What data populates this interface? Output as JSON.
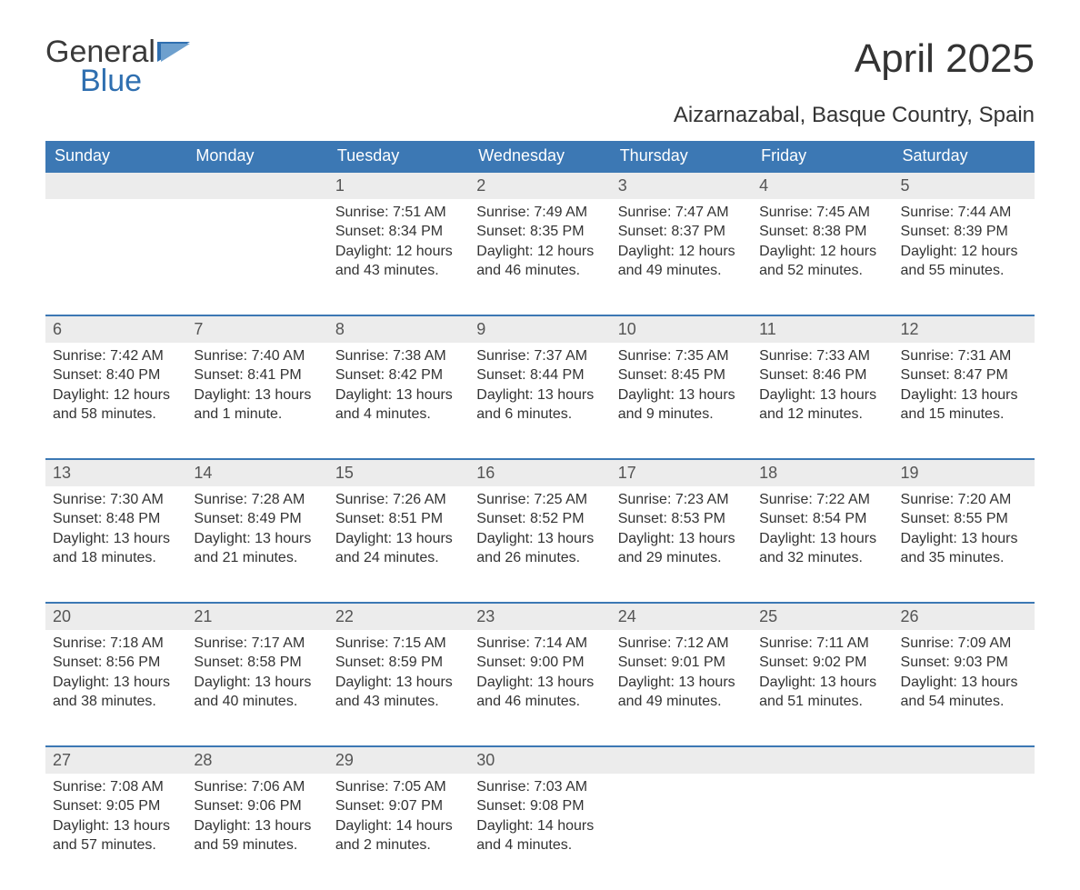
{
  "brand": {
    "name_top": "General",
    "name_bottom": "Blue",
    "flag_color": "#2f6fb0"
  },
  "header": {
    "title": "April 2025",
    "subtitle": "Aizarnazabal, Basque Country, Spain"
  },
  "colors": {
    "header_bg": "#3c78b4",
    "header_text": "#ffffff",
    "daynum_bg": "#ececec",
    "daynum_border": "#3c78b4",
    "body_text": "#333333",
    "brand_blue": "#2f6fb0"
  },
  "day_labels": [
    "Sunday",
    "Monday",
    "Tuesday",
    "Wednesday",
    "Thursday",
    "Friday",
    "Saturday"
  ],
  "weeks": [
    [
      null,
      null,
      {
        "n": "1",
        "sr": "Sunrise: 7:51 AM",
        "ss": "Sunset: 8:34 PM",
        "d1": "Daylight: 12 hours",
        "d2": "and 43 minutes."
      },
      {
        "n": "2",
        "sr": "Sunrise: 7:49 AM",
        "ss": "Sunset: 8:35 PM",
        "d1": "Daylight: 12 hours",
        "d2": "and 46 minutes."
      },
      {
        "n": "3",
        "sr": "Sunrise: 7:47 AM",
        "ss": "Sunset: 8:37 PM",
        "d1": "Daylight: 12 hours",
        "d2": "and 49 minutes."
      },
      {
        "n": "4",
        "sr": "Sunrise: 7:45 AM",
        "ss": "Sunset: 8:38 PM",
        "d1": "Daylight: 12 hours",
        "d2": "and 52 minutes."
      },
      {
        "n": "5",
        "sr": "Sunrise: 7:44 AM",
        "ss": "Sunset: 8:39 PM",
        "d1": "Daylight: 12 hours",
        "d2": "and 55 minutes."
      }
    ],
    [
      {
        "n": "6",
        "sr": "Sunrise: 7:42 AM",
        "ss": "Sunset: 8:40 PM",
        "d1": "Daylight: 12 hours",
        "d2": "and 58 minutes."
      },
      {
        "n": "7",
        "sr": "Sunrise: 7:40 AM",
        "ss": "Sunset: 8:41 PM",
        "d1": "Daylight: 13 hours",
        "d2": "and 1 minute."
      },
      {
        "n": "8",
        "sr": "Sunrise: 7:38 AM",
        "ss": "Sunset: 8:42 PM",
        "d1": "Daylight: 13 hours",
        "d2": "and 4 minutes."
      },
      {
        "n": "9",
        "sr": "Sunrise: 7:37 AM",
        "ss": "Sunset: 8:44 PM",
        "d1": "Daylight: 13 hours",
        "d2": "and 6 minutes."
      },
      {
        "n": "10",
        "sr": "Sunrise: 7:35 AM",
        "ss": "Sunset: 8:45 PM",
        "d1": "Daylight: 13 hours",
        "d2": "and 9 minutes."
      },
      {
        "n": "11",
        "sr": "Sunrise: 7:33 AM",
        "ss": "Sunset: 8:46 PM",
        "d1": "Daylight: 13 hours",
        "d2": "and 12 minutes."
      },
      {
        "n": "12",
        "sr": "Sunrise: 7:31 AM",
        "ss": "Sunset: 8:47 PM",
        "d1": "Daylight: 13 hours",
        "d2": "and 15 minutes."
      }
    ],
    [
      {
        "n": "13",
        "sr": "Sunrise: 7:30 AM",
        "ss": "Sunset: 8:48 PM",
        "d1": "Daylight: 13 hours",
        "d2": "and 18 minutes."
      },
      {
        "n": "14",
        "sr": "Sunrise: 7:28 AM",
        "ss": "Sunset: 8:49 PM",
        "d1": "Daylight: 13 hours",
        "d2": "and 21 minutes."
      },
      {
        "n": "15",
        "sr": "Sunrise: 7:26 AM",
        "ss": "Sunset: 8:51 PM",
        "d1": "Daylight: 13 hours",
        "d2": "and 24 minutes."
      },
      {
        "n": "16",
        "sr": "Sunrise: 7:25 AM",
        "ss": "Sunset: 8:52 PM",
        "d1": "Daylight: 13 hours",
        "d2": "and 26 minutes."
      },
      {
        "n": "17",
        "sr": "Sunrise: 7:23 AM",
        "ss": "Sunset: 8:53 PM",
        "d1": "Daylight: 13 hours",
        "d2": "and 29 minutes."
      },
      {
        "n": "18",
        "sr": "Sunrise: 7:22 AM",
        "ss": "Sunset: 8:54 PM",
        "d1": "Daylight: 13 hours",
        "d2": "and 32 minutes."
      },
      {
        "n": "19",
        "sr": "Sunrise: 7:20 AM",
        "ss": "Sunset: 8:55 PM",
        "d1": "Daylight: 13 hours",
        "d2": "and 35 minutes."
      }
    ],
    [
      {
        "n": "20",
        "sr": "Sunrise: 7:18 AM",
        "ss": "Sunset: 8:56 PM",
        "d1": "Daylight: 13 hours",
        "d2": "and 38 minutes."
      },
      {
        "n": "21",
        "sr": "Sunrise: 7:17 AM",
        "ss": "Sunset: 8:58 PM",
        "d1": "Daylight: 13 hours",
        "d2": "and 40 minutes."
      },
      {
        "n": "22",
        "sr": "Sunrise: 7:15 AM",
        "ss": "Sunset: 8:59 PM",
        "d1": "Daylight: 13 hours",
        "d2": "and 43 minutes."
      },
      {
        "n": "23",
        "sr": "Sunrise: 7:14 AM",
        "ss": "Sunset: 9:00 PM",
        "d1": "Daylight: 13 hours",
        "d2": "and 46 minutes."
      },
      {
        "n": "24",
        "sr": "Sunrise: 7:12 AM",
        "ss": "Sunset: 9:01 PM",
        "d1": "Daylight: 13 hours",
        "d2": "and 49 minutes."
      },
      {
        "n": "25",
        "sr": "Sunrise: 7:11 AM",
        "ss": "Sunset: 9:02 PM",
        "d1": "Daylight: 13 hours",
        "d2": "and 51 minutes."
      },
      {
        "n": "26",
        "sr": "Sunrise: 7:09 AM",
        "ss": "Sunset: 9:03 PM",
        "d1": "Daylight: 13 hours",
        "d2": "and 54 minutes."
      }
    ],
    [
      {
        "n": "27",
        "sr": "Sunrise: 7:08 AM",
        "ss": "Sunset: 9:05 PM",
        "d1": "Daylight: 13 hours",
        "d2": "and 57 minutes."
      },
      {
        "n": "28",
        "sr": "Sunrise: 7:06 AM",
        "ss": "Sunset: 9:06 PM",
        "d1": "Daylight: 13 hours",
        "d2": "and 59 minutes."
      },
      {
        "n": "29",
        "sr": "Sunrise: 7:05 AM",
        "ss": "Sunset: 9:07 PM",
        "d1": "Daylight: 14 hours",
        "d2": "and 2 minutes."
      },
      {
        "n": "30",
        "sr": "Sunrise: 7:03 AM",
        "ss": "Sunset: 9:08 PM",
        "d1": "Daylight: 14 hours",
        "d2": "and 4 minutes."
      },
      null,
      null,
      null
    ]
  ]
}
